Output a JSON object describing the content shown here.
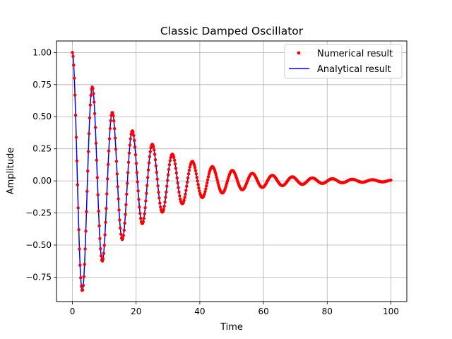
{
  "chart_data": {
    "type": "line",
    "title": "Classic Damped Oscillator",
    "xlabel": "Time",
    "ylabel": "Amplitude",
    "xlim": [
      -5,
      105
    ],
    "ylim": [
      -0.94,
      1.09
    ],
    "xticks": [
      0,
      20,
      40,
      60,
      80,
      100
    ],
    "yticks": [
      -0.75,
      -0.5,
      -0.25,
      0.0,
      0.25,
      0.5,
      0.75,
      1.0
    ],
    "xtick_labels": [
      "0",
      "20",
      "40",
      "60",
      "80",
      "100"
    ],
    "ytick_labels": [
      "−0.75",
      "−0.50",
      "−0.25",
      "0.00",
      "0.25",
      "0.50",
      "0.75",
      "1.00"
    ],
    "grid": true,
    "legend_position": "top-right",
    "series": [
      {
        "name": "Numerical result",
        "style": "markers",
        "color": "#ff0000",
        "x_range": [
          0,
          100
        ],
        "points": 500,
        "model": "exp(-0.05 t) cos(t)"
      },
      {
        "name": "Analytical result",
        "style": "line",
        "color": "#0000ff",
        "x_range": [
          0,
          100
        ],
        "model": "exp(-0.05 t) cos(t)"
      }
    ],
    "extrema_samples": {
      "x": [
        0,
        3.14,
        6.28,
        9.42,
        12.57,
        15.71,
        18.85,
        21.99,
        25.13,
        28.27,
        31.42
      ],
      "y": [
        1.0,
        -0.855,
        0.73,
        -0.624,
        0.533,
        -0.456,
        0.39,
        -0.333,
        0.285,
        -0.243,
        0.208
      ]
    }
  }
}
